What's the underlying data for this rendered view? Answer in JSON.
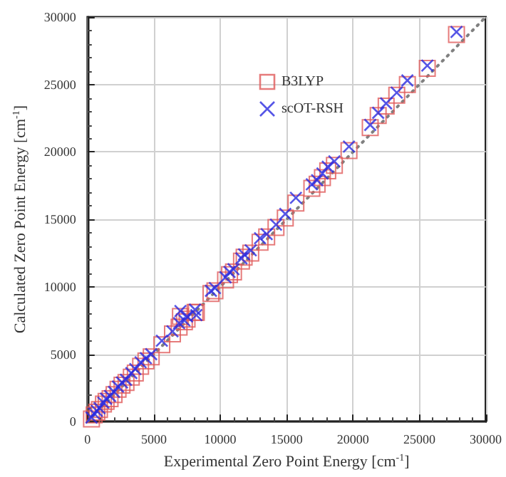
{
  "chart_data": {
    "type": "scatter",
    "xlabel": "Experimental Zero Point Energy [cm$^{-1}$]",
    "ylabel": "Calculated Zero Point Energy [cm$^{-1}$]",
    "xlim": [
      0,
      30000
    ],
    "ylim": [
      0,
      30000
    ],
    "xticks": [
      0,
      5000,
      10000,
      15000,
      20000,
      25000,
      30000
    ],
    "yticks": [
      0,
      5000,
      10000,
      15000,
      20000,
      25000,
      30000
    ],
    "grid": true,
    "legend": "top",
    "series": [
      {
        "name": "B3LYP",
        "color": "#e05a5a",
        "marker": "square",
        "x": [
          300,
          500,
          700,
          900,
          1200,
          1400,
          1700,
          2000,
          2300,
          2600,
          2900,
          3300,
          3600,
          4000,
          4400,
          4800,
          5600,
          6400,
          6900,
          7000,
          7300,
          7500,
          8100,
          8200,
          9300,
          9600,
          10400,
          10700,
          11000,
          11600,
          11800,
          12300,
          13000,
          13500,
          14200,
          14900,
          15700,
          16900,
          17300,
          17700,
          18100,
          18600,
          19700,
          21300,
          21900,
          22500,
          23300,
          24100,
          25600,
          27800
        ],
        "values": [
          200,
          500,
          700,
          900,
          1300,
          1500,
          1700,
          2000,
          2400,
          2700,
          2900,
          3300,
          3600,
          4100,
          4500,
          4800,
          5700,
          6500,
          7000,
          7800,
          7400,
          7600,
          8100,
          8100,
          9500,
          9700,
          10500,
          10900,
          11100,
          11900,
          12200,
          12500,
          13300,
          13700,
          14400,
          15100,
          16200,
          17300,
          17600,
          18100,
          18600,
          19000,
          20100,
          21800,
          22700,
          23400,
          24200,
          25000,
          26200,
          28700
        ]
      },
      {
        "name": "scOT-RSH",
        "color": "#2a2ae0",
        "marker": "cross",
        "x": [
          300,
          500,
          700,
          900,
          1200,
          1400,
          1700,
          2000,
          2300,
          2600,
          2900,
          3300,
          3600,
          4000,
          4400,
          4800,
          5600,
          6400,
          6900,
          7000,
          7300,
          7500,
          8100,
          8200,
          9300,
          9600,
          10400,
          10700,
          11000,
          11600,
          11800,
          12300,
          13000,
          13500,
          14200,
          14900,
          15700,
          16900,
          17300,
          17700,
          18100,
          18600,
          19700,
          21300,
          21900,
          22500,
          23300,
          24100,
          25600,
          27800
        ],
        "values": [
          300,
          600,
          800,
          1000,
          1400,
          1700,
          1900,
          2200,
          2600,
          2900,
          3100,
          3600,
          3900,
          4400,
          4700,
          5000,
          6000,
          6700,
          7300,
          8200,
          7500,
          7800,
          8300,
          7900,
          9700,
          9900,
          10700,
          11100,
          11300,
          12100,
          12400,
          12700,
          13600,
          13900,
          14600,
          15400,
          16600,
          17600,
          17900,
          18400,
          18900,
          19300,
          20400,
          22000,
          22900,
          23600,
          24400,
          25300,
          26400,
          28900
        ]
      },
      {
        "type": "line",
        "color": "#808080",
        "line_style": "dotted",
        "marker": "none",
        "x": [
          0,
          30000
        ],
        "values": [
          0,
          30000
        ]
      }
    ]
  }
}
